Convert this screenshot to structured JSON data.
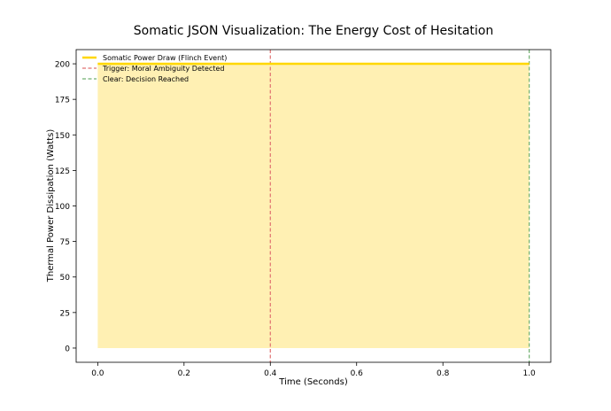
{
  "chart_data": {
    "type": "area",
    "title": "Somatic JSON Visualization: The Energy Cost of Hesitation",
    "xlabel": "Time (Seconds)",
    "ylabel": "Thermal Power Dissipation (Watts)",
    "xlim": [
      -0.05,
      1.05
    ],
    "ylim": [
      -10,
      210
    ],
    "xticks": [
      0.0,
      0.2,
      0.4,
      0.6,
      0.8,
      1.0
    ],
    "xtick_labels": [
      "0.0",
      "0.2",
      "0.4",
      "0.6",
      "0.8",
      "1.0"
    ],
    "yticks": [
      0,
      25,
      50,
      75,
      100,
      125,
      150,
      175,
      200
    ],
    "ytick_labels": [
      "0",
      "25",
      "50",
      "75",
      "100",
      "125",
      "150",
      "175",
      "200"
    ],
    "grid": false,
    "legend_position": "top-left",
    "series": [
      {
        "name": "Somatic Power Draw (Flinch Event)",
        "x": [
          0.0,
          1.0
        ],
        "y": [
          200,
          200
        ],
        "color": "#FFD700",
        "fill_color": "#FFF0B3",
        "style": "solid"
      }
    ],
    "vlines": [
      {
        "name": "Trigger: Moral Ambiguity Detected",
        "x": 0.4,
        "color": "#E07070",
        "style": "dashed"
      },
      {
        "name": "Clear: Decision Reached",
        "x": 1.0,
        "color": "#70B070",
        "style": "dashed"
      }
    ]
  }
}
